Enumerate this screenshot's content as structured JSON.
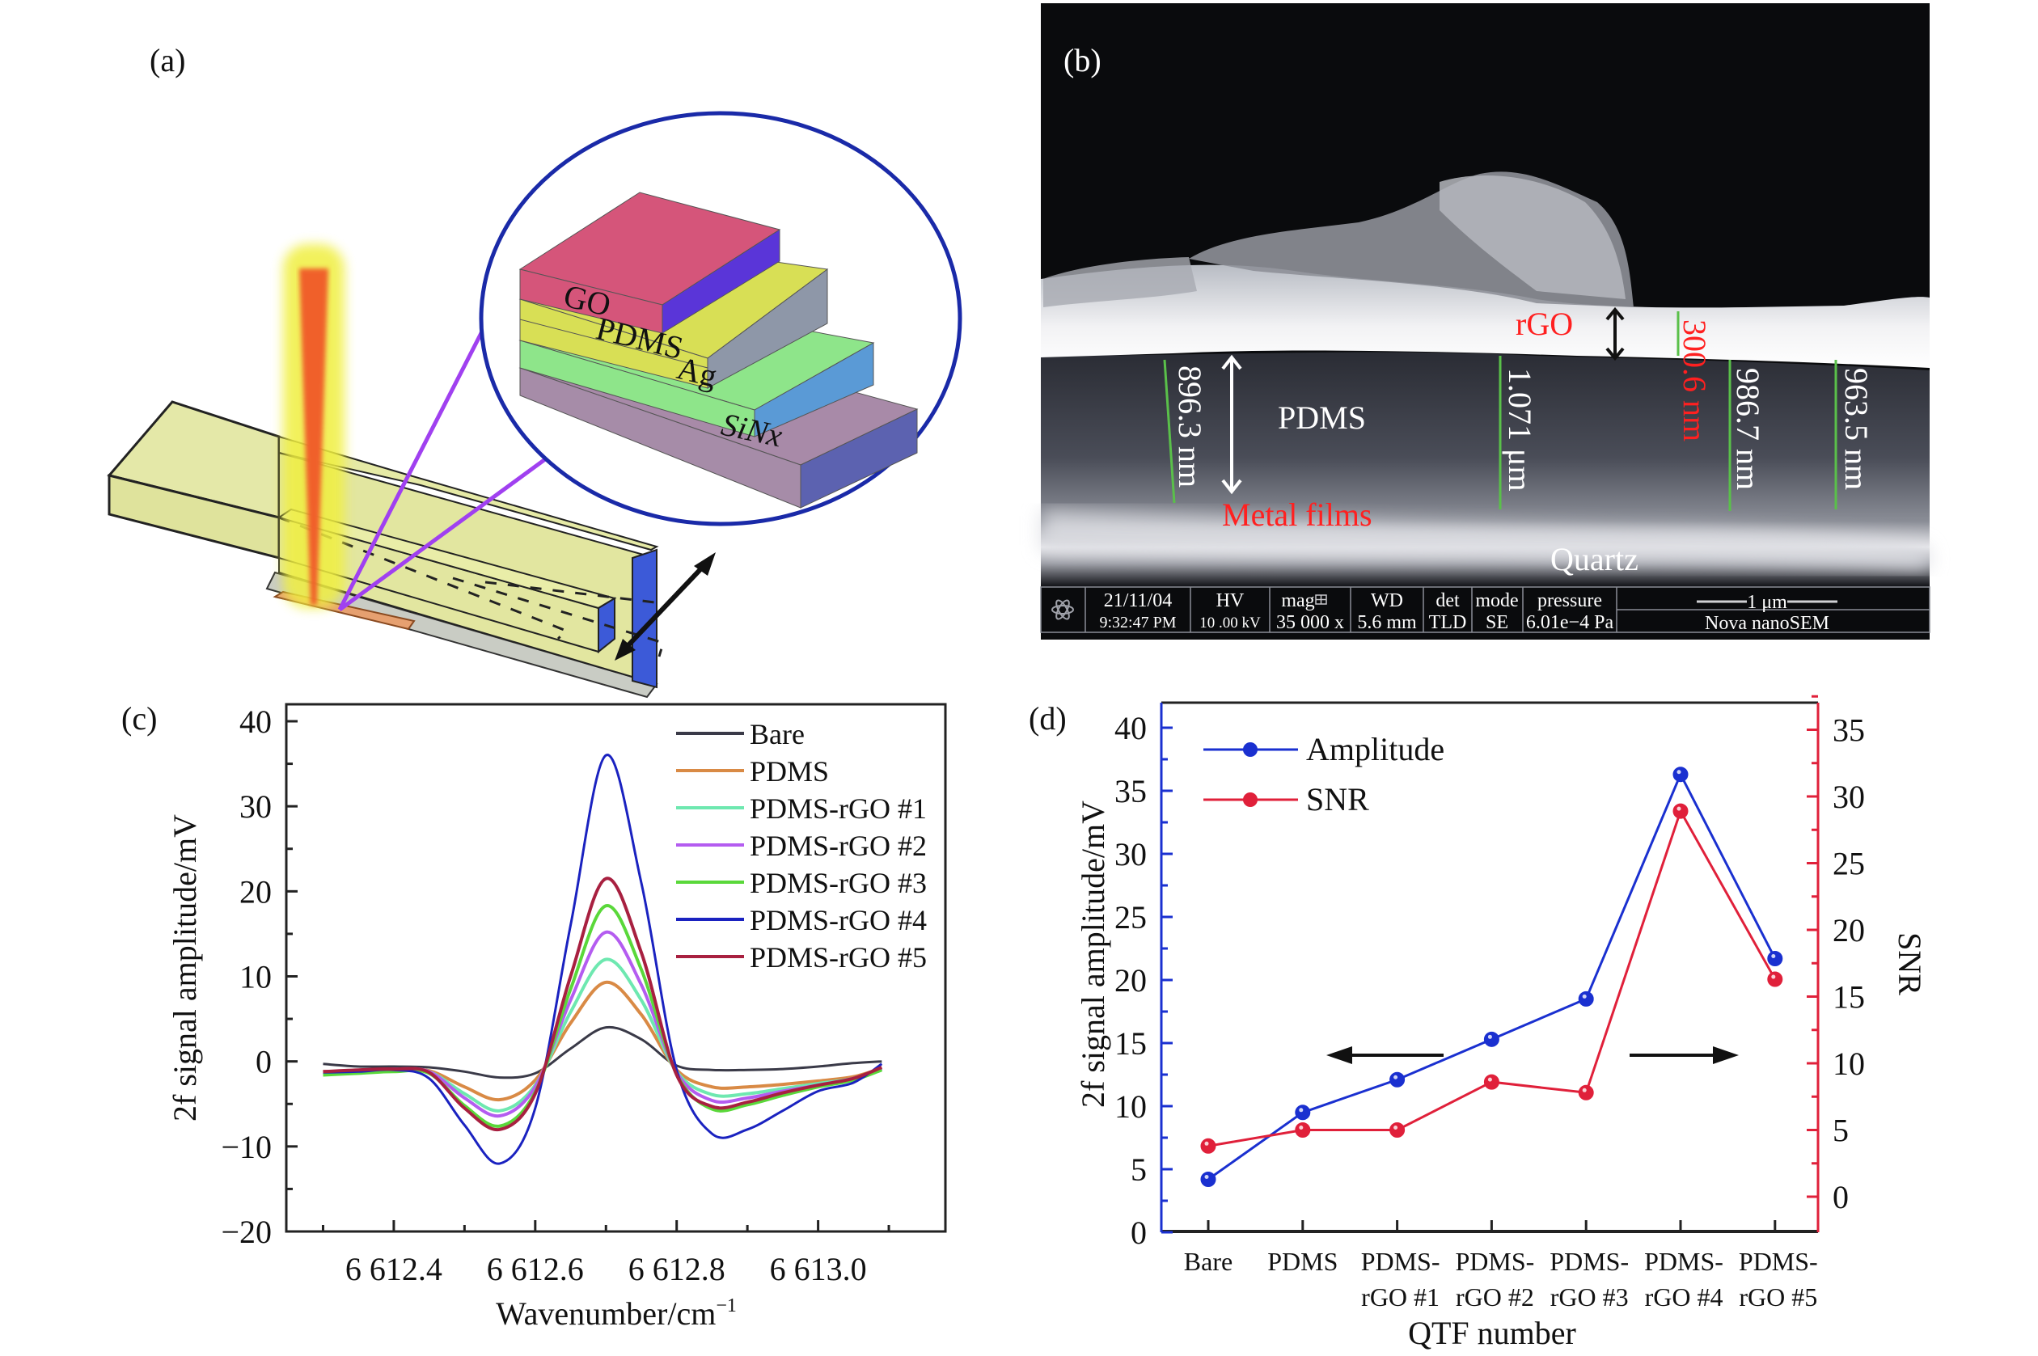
{
  "panels": {
    "a": {
      "label": "(a)",
      "layers": [
        "GO",
        "PDMS",
        "Ag",
        "SiNx"
      ],
      "colors": {
        "go_top": "#d5557a",
        "go_side": "#5a35d8",
        "pdms_top": "#d8df55",
        "pdms_side": "#8e97a8",
        "ag_top": "#8ee58a",
        "ag_side": "#5a9ad6",
        "sinx_top": "#a88aa8",
        "sinx_side": "#5c62b0",
        "prong": "#e6eaa6",
        "prong_end": "#3050d8",
        "pad": "#e6a070",
        "beam_glow": "#f0ef40",
        "beam_core": "#f0602a",
        "zoom_circle": "#1a2aa8",
        "zoom_lines": "#a040f0"
      }
    },
    "b": {
      "label": "(b)",
      "annotations": {
        "rgo": "rGO",
        "pdms": "PDMS",
        "metal": "Metal films",
        "quartz": "Quartz",
        "m1": "896.3 nm",
        "m2": "1.071 μm",
        "m3": "300.6 nm",
        "m4": "986.7 nm",
        "m5": "963.5 nm"
      },
      "info_bar": {
        "date": "21/11/04",
        "time": "9:32:47 PM",
        "hv_label": "HV",
        "hv_value": "10 .00 kV",
        "mag_label": "mag",
        "mag_value": "35 000 x",
        "wd_label": "WD",
        "wd_value": "5.6 mm",
        "det_label": "det",
        "det_value": "TLD",
        "mode_label": "mode",
        "mode_value": "SE",
        "pressure_label": "pressure",
        "pressure_value": "6.01e−4 Pa",
        "scale_label": "1 μm",
        "instrument": "Nova nanoSEM"
      }
    },
    "c": {
      "label": "(c)"
    },
    "d": {
      "label": "(d)"
    }
  },
  "chart_data": [
    {
      "id": "c",
      "type": "line",
      "title": "",
      "xlabel": "Wavenumber/cm",
      "xlabel_sup": "−1",
      "ylabel": "2f signal amplitude/mV",
      "xlim": [
        6612.248,
        6613.18
      ],
      "ylim": [
        -20,
        42
      ],
      "xticks": [
        6612.4,
        6612.6,
        6612.8,
        6613.0
      ],
      "xtick_labels": [
        "6 612.4",
        "6 612.6",
        "6 612.8",
        "6 613.0"
      ],
      "yticks": [
        40,
        30,
        20,
        10,
        0,
        -10,
        -20
      ],
      "ytick_labels": [
        "40",
        "30",
        "20",
        "10",
        "0",
        "−10",
        "−20"
      ],
      "legend_position": "top-right",
      "x": [
        6612.3,
        6612.35,
        6612.4,
        6612.45,
        6612.5,
        6612.55,
        6612.6,
        6612.65,
        6612.7,
        6612.75,
        6612.8,
        6612.85,
        6612.9,
        6612.95,
        6613.0,
        6613.05,
        6613.09
      ],
      "series": [
        {
          "name": "Bare",
          "color": "#3a3a48",
          "values": [
            -0.3,
            -0.6,
            -0.6,
            -0.7,
            -1.2,
            -1.9,
            -1.4,
            1.5,
            4.0,
            2.6,
            -0.5,
            -1.0,
            -1.0,
            -0.9,
            -0.6,
            -0.2,
            0.0
          ]
        },
        {
          "name": "PDMS",
          "color": "#d98a45",
          "values": [
            -1.2,
            -1.1,
            -1.0,
            -1.1,
            -3.0,
            -4.5,
            -2.2,
            4.5,
            9.3,
            5.5,
            -1.0,
            -3.0,
            -3.0,
            -2.7,
            -2.3,
            -1.8,
            -0.8
          ]
        },
        {
          "name": "PDMS-rGO #1",
          "color": "#6ee8b0",
          "values": [
            -1.4,
            -1.2,
            -1.0,
            -1.2,
            -3.8,
            -5.8,
            -2.8,
            5.8,
            12.0,
            7.2,
            -1.2,
            -3.9,
            -3.8,
            -3.2,
            -2.6,
            -2.0,
            -0.9
          ]
        },
        {
          "name": "PDMS-rGO #2",
          "color": "#b45cf0",
          "values": [
            -1.3,
            -1.1,
            -0.9,
            -1.2,
            -4.3,
            -6.4,
            -3.0,
            7.2,
            15.2,
            9.0,
            -1.3,
            -4.6,
            -4.3,
            -3.5,
            -2.8,
            -2.0,
            -0.8
          ]
        },
        {
          "name": "PDMS-rGO #3",
          "color": "#5ad83a",
          "values": [
            -1.6,
            -1.4,
            -1.2,
            -1.4,
            -5.2,
            -7.6,
            -3.6,
            8.5,
            18.3,
            10.8,
            -1.5,
            -5.6,
            -5.1,
            -4.0,
            -3.0,
            -2.2,
            -1.0
          ]
        },
        {
          "name": "PDMS-rGO #4",
          "color": "#1a22c0",
          "values": [
            -1.3,
            -1.2,
            -1.0,
            -2.0,
            -7.5,
            -12.0,
            -5.5,
            16.0,
            36.0,
            21.0,
            -1.0,
            -8.5,
            -8.0,
            -5.8,
            -3.5,
            -2.5,
            -0.3
          ]
        },
        {
          "name": "PDMS-rGO #5",
          "color": "#a82040",
          "values": [
            -1.2,
            -1.0,
            -0.9,
            -1.3,
            -5.5,
            -8.0,
            -3.8,
            10.0,
            21.5,
            12.8,
            -1.6,
            -5.3,
            -4.8,
            -3.7,
            -2.8,
            -2.0,
            -0.7
          ]
        }
      ]
    },
    {
      "id": "d",
      "type": "line",
      "title": "",
      "xlabel": "QTF number",
      "ylabel": "2f signal amplitude/mV",
      "ylabel_right": "SNR",
      "categories": [
        [
          "Bare"
        ],
        [
          "PDMS"
        ],
        [
          "PDMS-",
          "rGO #1"
        ],
        [
          "PDMS-",
          "rGO #2"
        ],
        [
          "PDMS-",
          "rGO #3"
        ],
        [
          "PDMS-",
          "rGO #4"
        ],
        [
          "PDMS-",
          "rGO #5"
        ]
      ],
      "ylim": [
        0,
        42
      ],
      "ylim_right": [
        -2.65,
        36.9
      ],
      "yticks": [
        0,
        5,
        10,
        15,
        20,
        25,
        30,
        35,
        40
      ],
      "yticks_right": [
        0,
        5,
        10,
        15,
        20,
        25,
        30,
        35
      ],
      "legend_position": "top-left",
      "series": [
        {
          "name": "Amplitude",
          "axis": "left",
          "color": "#1a30d0",
          "values": [
            4.2,
            9.5,
            12.1,
            15.3,
            18.5,
            36.3,
            21.7
          ]
        },
        {
          "name": "SNR",
          "axis": "right",
          "color": "#e0203a",
          "values": [
            3.8,
            5.0,
            5.0,
            8.6,
            7.8,
            28.9,
            16.3
          ]
        }
      ],
      "axis_colors": {
        "left": "#1a30d0",
        "right": "#e0203a"
      }
    }
  ]
}
